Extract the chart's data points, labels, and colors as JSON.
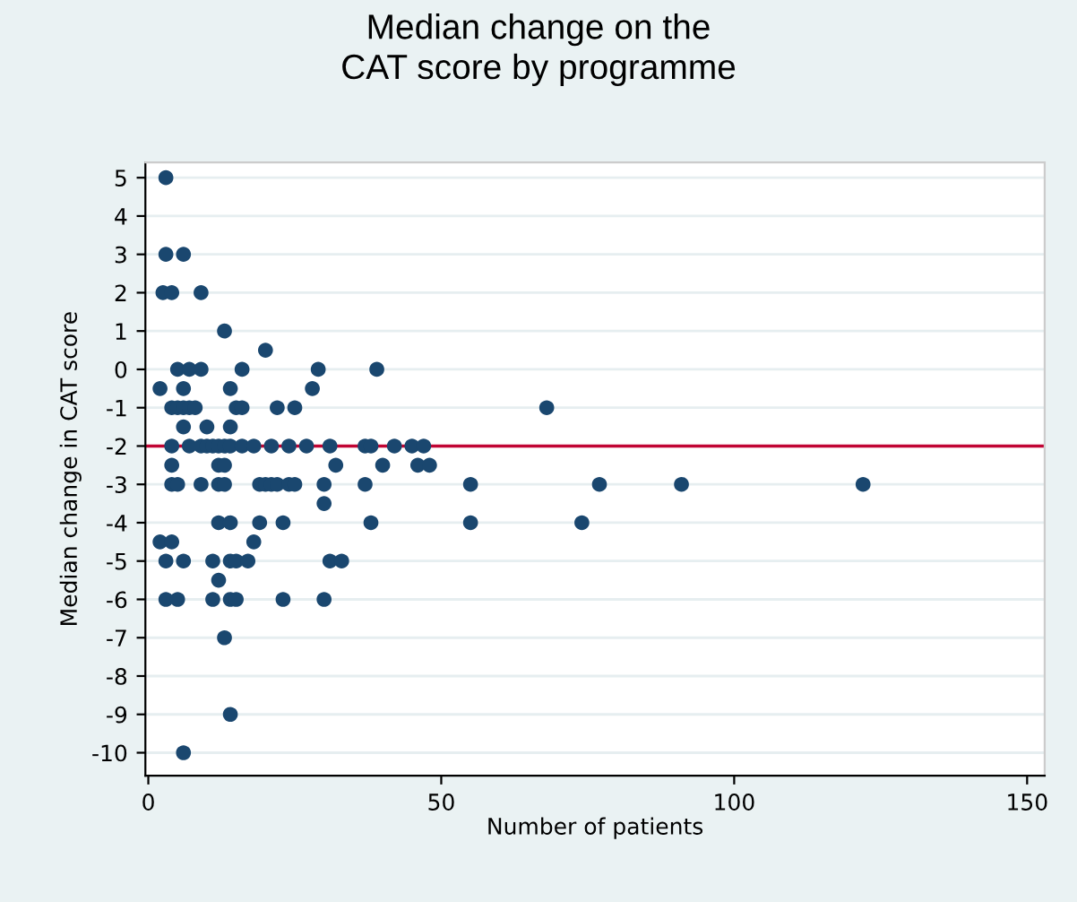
{
  "chart_data": {
    "type": "scatter",
    "title": "Median change on the\nCAT score by programme",
    "xlabel": "Number of patients",
    "ylabel": "Median change in CAT score",
    "series": [
      {
        "color": "#1a476f",
        "x": [
          3,
          3,
          6,
          2.5,
          4,
          9,
          13,
          20,
          5,
          7,
          9,
          16,
          29,
          39,
          2,
          6,
          14,
          28,
          4,
          5,
          6,
          7,
          8,
          15,
          16,
          22,
          25,
          68,
          6,
          10,
          14,
          4,
          7,
          9,
          10,
          11,
          12,
          13,
          14,
          16,
          18,
          21,
          24,
          27,
          31,
          37,
          38,
          42,
          45,
          47,
          4,
          12,
          13,
          32,
          40,
          46,
          48,
          4,
          5,
          9,
          12,
          13,
          19,
          20,
          21,
          22,
          24,
          25,
          30,
          37,
          55,
          77,
          91,
          122,
          30,
          12,
          14,
          19,
          23,
          38,
          55,
          74,
          2,
          4,
          18,
          3,
          6,
          11,
          14,
          15,
          17,
          31,
          33,
          12,
          3,
          5,
          11,
          14,
          15,
          23,
          30,
          13,
          14,
          6
        ],
        "values": [
          5,
          3,
          3,
          2,
          2,
          2,
          1,
          0.5,
          0,
          0,
          0,
          0,
          0,
          0,
          -0.5,
          -0.5,
          -0.5,
          -0.5,
          -1,
          -1,
          -1,
          -1,
          -1,
          -1,
          -1,
          -1,
          -1,
          -1,
          -1.5,
          -1.5,
          -1.5,
          -2,
          -2,
          -2,
          -2,
          -2,
          -2,
          -2,
          -2,
          -2,
          -2,
          -2,
          -2,
          -2,
          -2,
          -2,
          -2,
          -2,
          -2,
          -2,
          -2.5,
          -2.5,
          -2.5,
          -2.5,
          -2.5,
          -2.5,
          -2.5,
          -3,
          -3,
          -3,
          -3,
          -3,
          -3,
          -3,
          -3,
          -3,
          -3,
          -3,
          -3,
          -3,
          -3,
          -3,
          -3,
          -3,
          -3.5,
          -4,
          -4,
          -4,
          -4,
          -4,
          -4,
          -4,
          -4.5,
          -4.5,
          -4.5,
          -5,
          -5,
          -5,
          -5,
          -5,
          -5,
          -5,
          -5,
          -5.5,
          -6,
          -6,
          -6,
          -6,
          -6,
          -6,
          -6,
          -7,
          -9,
          -10
        ]
      }
    ],
    "xlim": [
      -0.5,
      153
    ],
    "xticks": [
      0,
      50,
      100,
      150
    ],
    "ylim": [
      -10.6,
      5.4
    ],
    "yticks": [
      -10,
      -9,
      -8,
      -7,
      -6,
      -5,
      -4,
      -3,
      -2,
      -1,
      0,
      1,
      2,
      3,
      4,
      5
    ],
    "grid": "y",
    "marker": "circle",
    "legend": false,
    "ref_lines": [
      {
        "axis": "y",
        "value": -2,
        "color": "#c10534"
      }
    ]
  }
}
